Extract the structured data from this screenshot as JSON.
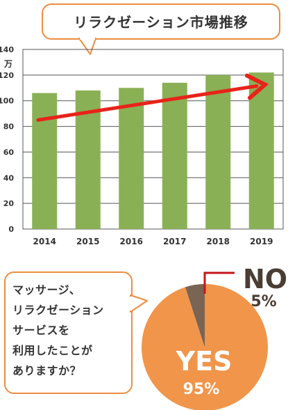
{
  "title": "リラクゼーション市場推移",
  "colors": {
    "accent": "#ec8d3f",
    "bar": "#8ab055",
    "trend_arrow": "#e8231a",
    "pie_yes": "#f0954a",
    "pie_no": "#7a6453"
  },
  "chart_data": [
    {
      "type": "bar",
      "unit": "万",
      "categories": [
        "2014",
        "2015",
        "2016",
        "2017",
        "2018",
        "2019"
      ],
      "values": [
        106,
        108,
        110,
        114,
        120,
        122
      ],
      "ylim": [
        0,
        140
      ],
      "yticks": [
        "0",
        "20",
        "40",
        "60",
        "80",
        "100",
        "120",
        "140"
      ],
      "grid": true,
      "trend_arrow": true
    },
    {
      "type": "pie",
      "slices": [
        {
          "label": "YES",
          "value": 95,
          "value_label": "95%"
        },
        {
          "label": "NO",
          "value": 5,
          "value_label": "5%"
        }
      ]
    }
  ],
  "question": "マッサージ、\nリラクゼーション\nサービスを\n利用したことが\nありますか？"
}
